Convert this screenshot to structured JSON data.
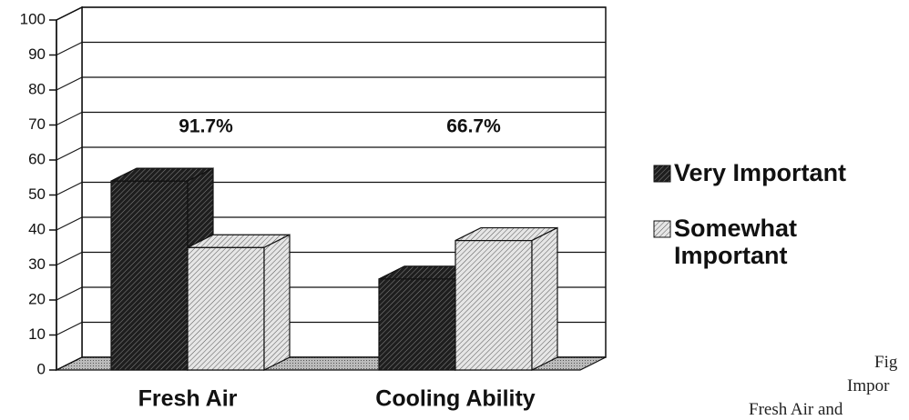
{
  "chart_data": {
    "type": "bar3d",
    "categories": [
      "Fresh Air",
      "Cooling Ability"
    ],
    "series": [
      {
        "name": "Very Important",
        "color": "#1e1e1e",
        "values": [
          54,
          26
        ]
      },
      {
        "name": "Somewhat Important",
        "color": "#d8d8d8",
        "values": [
          35,
          37
        ]
      }
    ],
    "annotations": [
      "91.7%",
      "66.7%"
    ],
    "ylim": [
      0,
      100
    ],
    "yticks": [
      0,
      10,
      20,
      30,
      40,
      50,
      60,
      70,
      80,
      90,
      100
    ],
    "grid": true,
    "legend": "right",
    "caption_lines": [
      "Fig",
      "Impor",
      "Fresh Air and"
    ]
  }
}
